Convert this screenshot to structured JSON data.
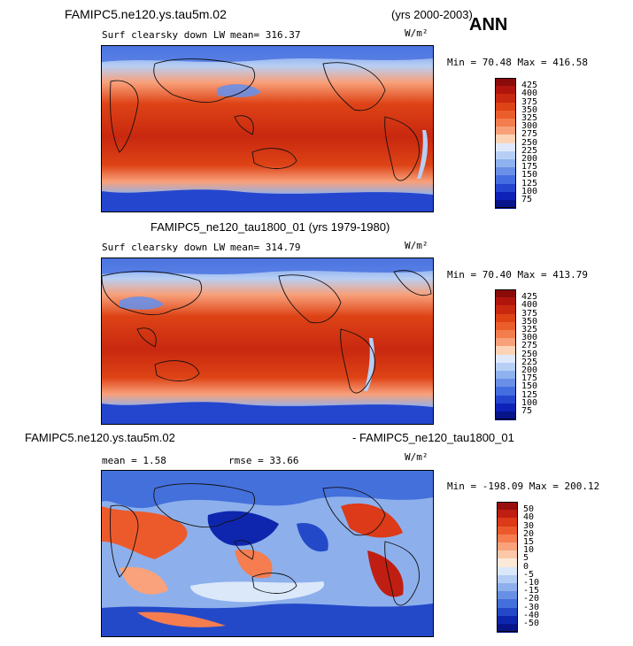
{
  "header": {
    "case_name": "FAMIPC5.ne120.ys.tau5m.02",
    "years": "(yrs 2000-2003)",
    "season": "ANN"
  },
  "panels": [
    {
      "title": "",
      "variable": "Surf clearsky down LW",
      "mean": "mean= 316.37",
      "units": "W/m²",
      "minmax": "Min =  70.48 Max = 416.58",
      "colorbar": {
        "ticks": [
          "425",
          "400",
          "375",
          "350",
          "325",
          "300",
          "275",
          "250",
          "225",
          "200",
          "175",
          "150",
          "125",
          "100",
          "75"
        ],
        "colors": [
          "#8b0b0b",
          "#b0150d",
          "#c8280f",
          "#de4316",
          "#ea5e2c",
          "#f37d4c",
          "#f8a07a",
          "#fcd3b6",
          "#dfe9fb",
          "#b7cff5",
          "#8fb1ee",
          "#6a8fe6",
          "#446ee0",
          "#2446cf",
          "#0e22b8",
          "#07148a"
        ]
      }
    },
    {
      "title": "FAMIPC5_ne120_tau1800_01 (yrs 1979-1980)",
      "variable": "Surf clearsky down LW",
      "mean": "mean= 314.79",
      "units": "W/m²",
      "minmax": "Min =  70.40 Max = 413.79",
      "colorbar": {
        "ticks": [
          "425",
          "400",
          "375",
          "350",
          "325",
          "300",
          "275",
          "250",
          "225",
          "200",
          "175",
          "150",
          "125",
          "100",
          "75"
        ],
        "colors": [
          "#8b0b0b",
          "#b0150d",
          "#c8280f",
          "#de4316",
          "#ea5e2c",
          "#f37d4c",
          "#f8a07a",
          "#fcd3b6",
          "#dfe9fb",
          "#b7cff5",
          "#8fb1ee",
          "#6a8fe6",
          "#446ee0",
          "#2446cf",
          "#0e22b8",
          "#07148a"
        ]
      }
    },
    {
      "title_left": "FAMIPC5.ne120.ys.tau5m.02",
      "title_right": "- FAMIPC5_ne120_tau1800_01",
      "mean": "mean =   1.58",
      "rmse": "rmse =  33.66",
      "units": "W/m²",
      "minmax": "Min = -198.09 Max = 200.12",
      "colorbar": {
        "ticks": [
          "50",
          "40",
          "30",
          "20",
          "15",
          "10",
          "5",
          "0",
          "-5",
          "-10",
          "-15",
          "-20",
          "-30",
          "-40",
          "-50"
        ],
        "colors": [
          "#9a0d0d",
          "#c01e12",
          "#dc3a18",
          "#ec5a2c",
          "#f57d50",
          "#f9a27c",
          "#fcc8a8",
          "#fde9d8",
          "#dbe8fa",
          "#b4cdf4",
          "#8db0ec",
          "#6790e4",
          "#4470dc",
          "#2349c9",
          "#0e26ae",
          "#08158a"
        ]
      }
    }
  ]
}
